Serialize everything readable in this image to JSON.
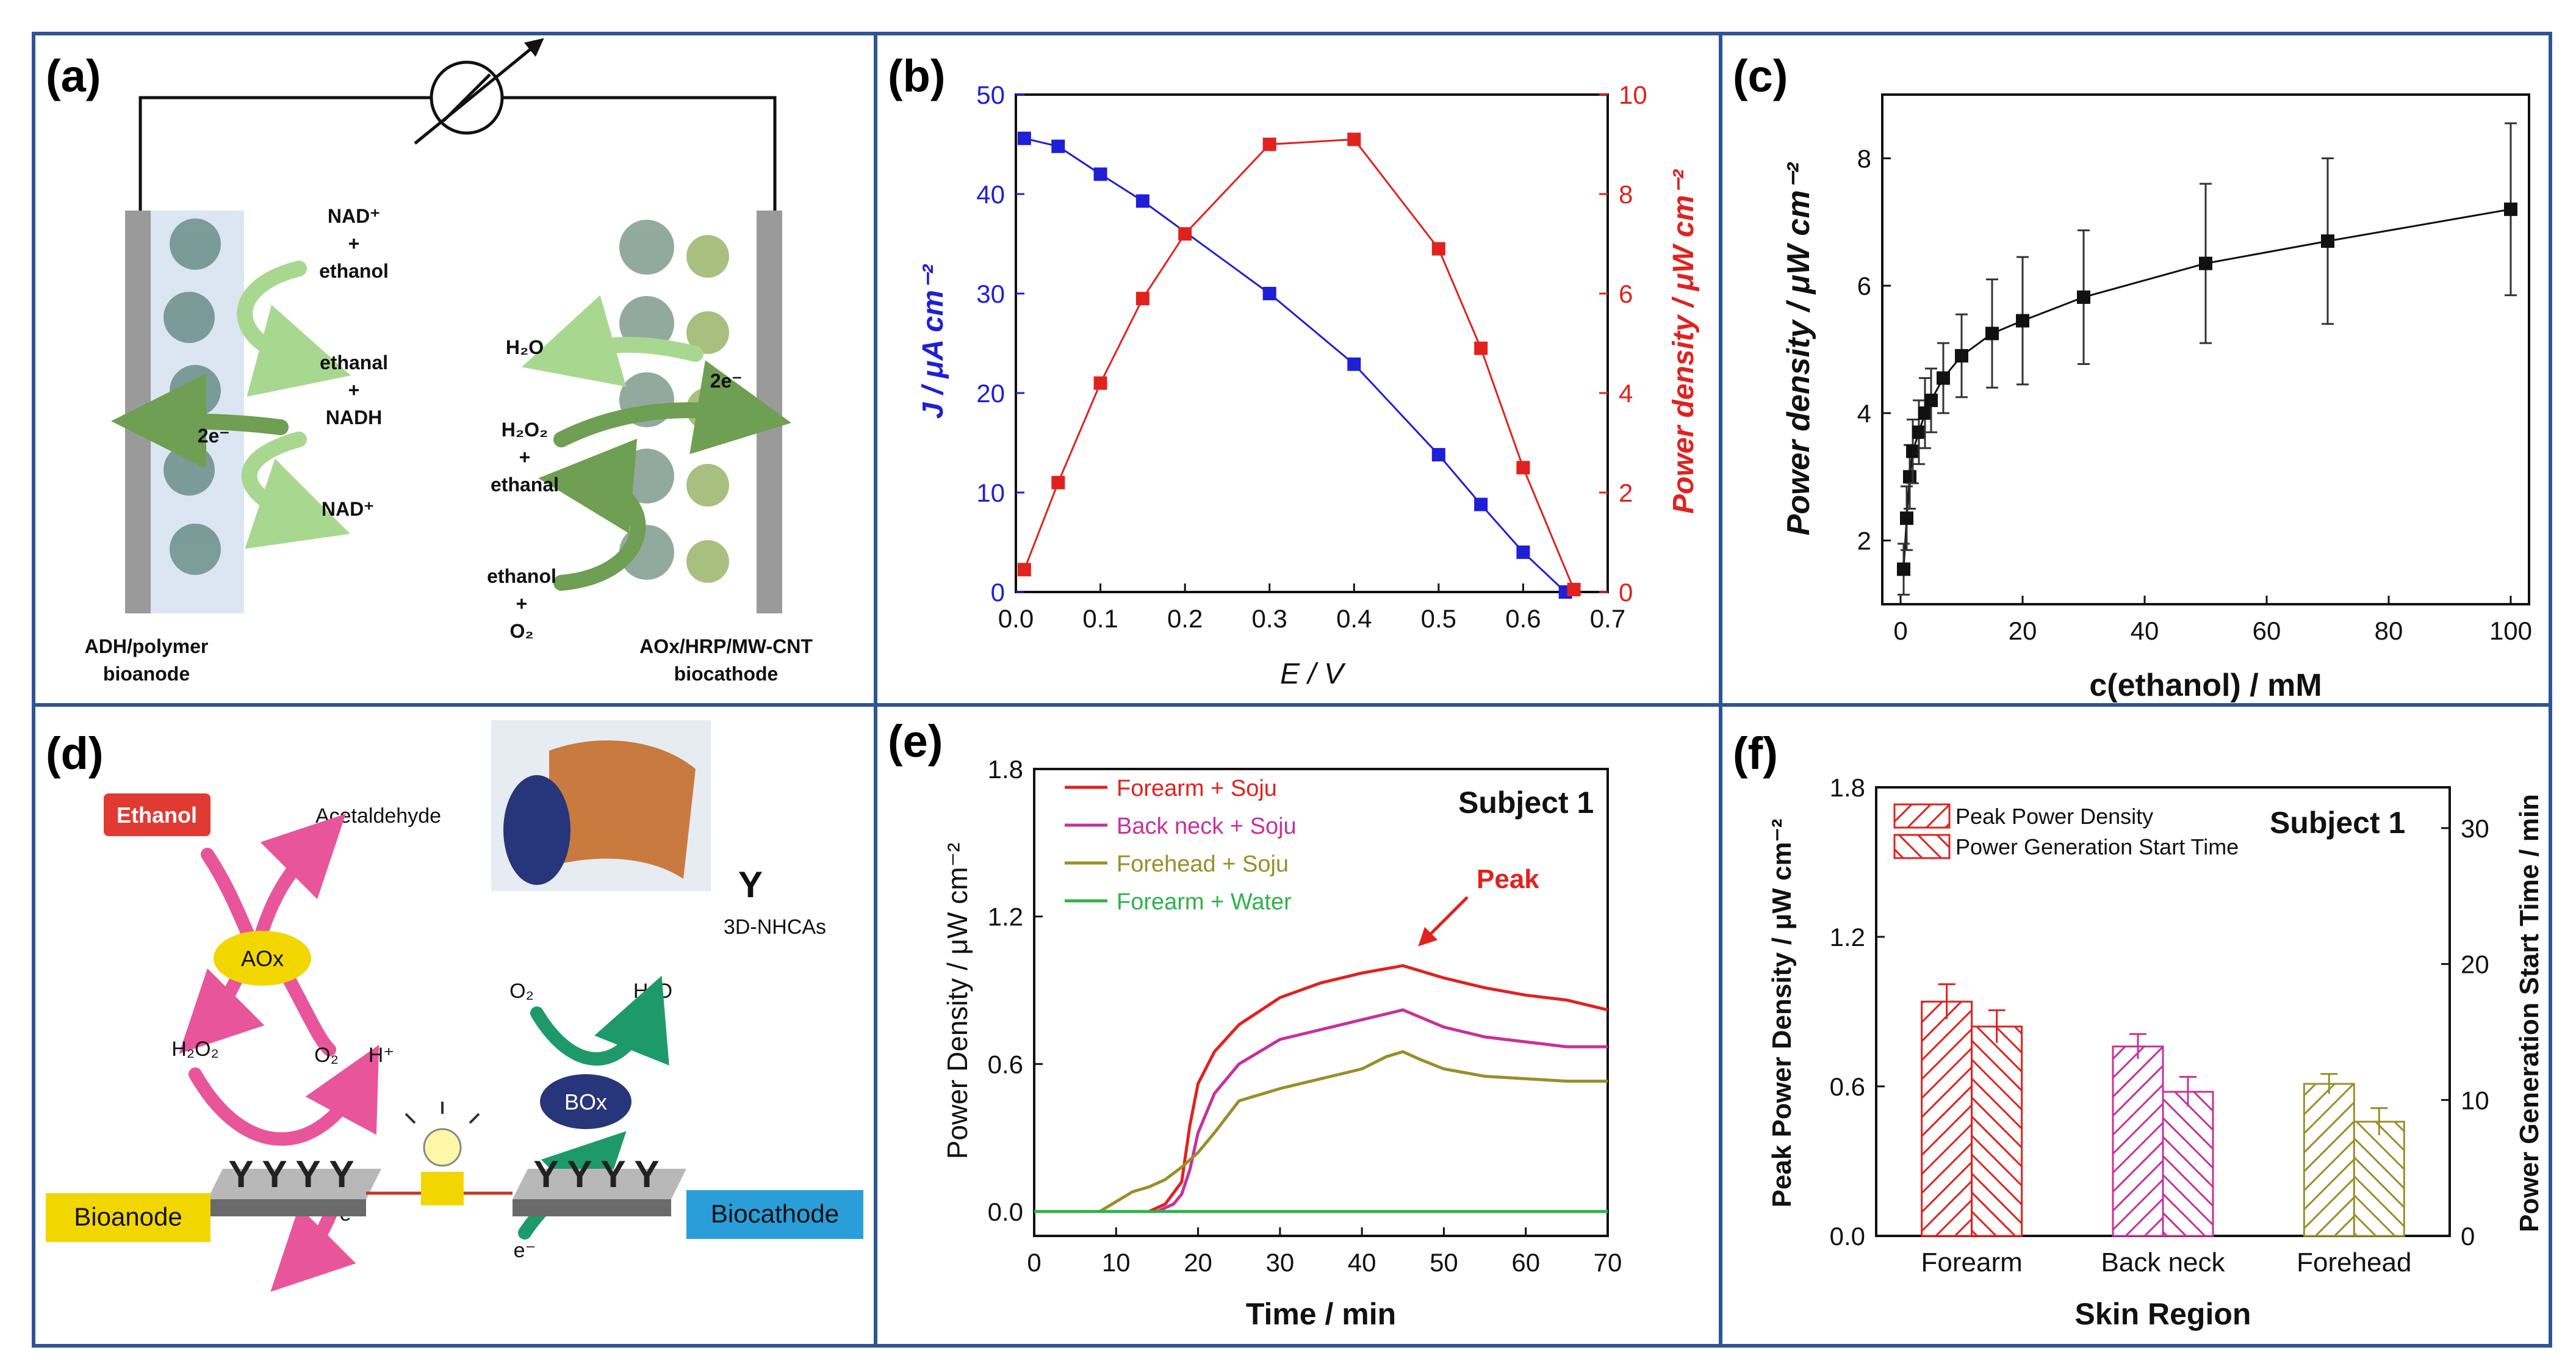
{
  "panel_labels": {
    "a": "(a)",
    "b": "(b)",
    "c": "(c)",
    "d": "(d)",
    "e": "(e)",
    "f": "(f)"
  },
  "colors": {
    "border": "#2f5496",
    "blue": "#1f1fd6",
    "red": "#e0221f",
    "magenta": "#c8309a",
    "olive": "#9a8e2a",
    "green": "#2db34a",
    "black": "#111111",
    "light_green": "#a8d890",
    "dark_green": "#6f9f52",
    "pink": "#e8559a",
    "teal": "#1e9a6a",
    "yellow": "#f2d600",
    "red_box": "#e03a33",
    "blue_box": "#2a9ed8"
  },
  "diagram_a": {
    "left_labels": [
      "NAD⁺",
      "+",
      "ethanol",
      "ethanal",
      "+",
      "NADH",
      "NAD⁺",
      "2e⁻"
    ],
    "right_labels": [
      "H₂O",
      "H₂O₂",
      "+",
      "ethanal",
      "ethanol",
      "+",
      "O₂",
      "2e⁻"
    ],
    "anode_caption": [
      "ADH/polymer",
      "bioanode"
    ],
    "cathode_caption": [
      "AOx/HRP/MW-CNT",
      "biocathode"
    ]
  },
  "diagram_d": {
    "ethanol": "Ethanol",
    "acetaldehyde": "Acetaldehyde",
    "aox": "AOx",
    "h2o2": "H₂O₂",
    "o2_left": "O₂",
    "h_plus": "H⁺",
    "o2_right": "O₂",
    "h2o": "H₂O",
    "box": "BOx",
    "bioanode": "Bioanode",
    "biocathode": "Biocathode",
    "e_left": "e⁻",
    "e_right": "e⁻",
    "nhca": "3D-NHCAs"
  },
  "chart_data": [
    {
      "id": "b",
      "type": "line",
      "xlabel": "E / V",
      "ylabel_left": "J / μA cm⁻²",
      "ylabel_right": "Power density / μW cm⁻²",
      "xlim": [
        0,
        0.7
      ],
      "ylim_left": [
        0,
        50
      ],
      "ylim_right": [
        0,
        10
      ],
      "x_ticks": [
        "0.0",
        "0.1",
        "0.2",
        "0.3",
        "0.4",
        "0.5",
        "0.6",
        "0.7"
      ],
      "y_left_ticks": [
        "0",
        "10",
        "20",
        "30",
        "40",
        "50"
      ],
      "y_right_ticks": [
        "0",
        "2",
        "4",
        "6",
        "8",
        "10"
      ],
      "series": [
        {
          "name": "J",
          "axis": "left",
          "color": "blue",
          "x": [
            0.01,
            0.05,
            0.1,
            0.15,
            0.3,
            0.4,
            0.5,
            0.55,
            0.6,
            0.65
          ],
          "y": [
            45.6,
            44.8,
            42,
            39.3,
            30,
            22.9,
            13.8,
            8.8,
            4,
            0
          ]
        },
        {
          "name": "Power density",
          "axis": "right",
          "color": "red",
          "x": [
            0.01,
            0.05,
            0.1,
            0.15,
            0.2,
            0.3,
            0.4,
            0.5,
            0.55,
            0.6,
            0.66
          ],
          "y": [
            0.45,
            2.2,
            4.2,
            5.9,
            7.2,
            9.0,
            9.1,
            6.9,
            4.9,
            2.5,
            0.05
          ]
        }
      ]
    },
    {
      "id": "c",
      "type": "scatter",
      "xlabel": "c(ethanol) / mM",
      "ylabel": "Power density / μW cm⁻²",
      "xlim": [
        0,
        100
      ],
      "ylim": [
        1,
        9
      ],
      "x_ticks": [
        "0",
        "20",
        "40",
        "60",
        "80",
        "100"
      ],
      "y_ticks": [
        "2",
        "4",
        "6",
        "8"
      ],
      "series": [
        {
          "name": "Power density",
          "x": [
            0.5,
            1,
            1.5,
            2,
            3,
            4,
            5,
            7,
            10,
            15,
            20,
            30,
            50,
            70,
            100
          ],
          "y": [
            1.55,
            2.35,
            3.0,
            3.4,
            3.7,
            4.0,
            4.2,
            4.55,
            4.9,
            5.25,
            5.45,
            5.82,
            6.35,
            6.7,
            7.2
          ],
          "err": [
            0.4,
            0.5,
            0.5,
            0.5,
            0.5,
            0.55,
            0.5,
            0.55,
            0.65,
            0.85,
            1.0,
            1.05,
            1.25,
            1.3,
            1.35
          ]
        }
      ]
    },
    {
      "id": "e",
      "type": "line",
      "xlabel": "Time / min",
      "ylabel": "Power Density / μW cm⁻²",
      "xlim": [
        0,
        70
      ],
      "ylim": [
        0,
        1.8
      ],
      "x_ticks": [
        "0",
        "10",
        "20",
        "30",
        "40",
        "50",
        "60",
        "70"
      ],
      "y_ticks": [
        "0.0",
        "0.6",
        "1.2",
        "1.8"
      ],
      "annotation_subject": "Subject 1",
      "annotation_peak": "Peak",
      "series": [
        {
          "name": "Forearm + Soju",
          "color": "red",
          "x": [
            0,
            14,
            16,
            18,
            19,
            20,
            22,
            25,
            30,
            35,
            40,
            45,
            50,
            55,
            60,
            65,
            70
          ],
          "y": [
            0,
            0,
            0.03,
            0.12,
            0.35,
            0.52,
            0.65,
            0.76,
            0.87,
            0.93,
            0.97,
            1.0,
            0.95,
            0.91,
            0.88,
            0.86,
            0.82
          ]
        },
        {
          "name": "Back neck + Soju",
          "color": "magenta",
          "x": [
            0,
            15,
            17,
            18,
            19,
            20,
            22,
            25,
            30,
            35,
            40,
            45,
            50,
            55,
            60,
            65,
            70
          ],
          "y": [
            0,
            0,
            0.03,
            0.07,
            0.17,
            0.32,
            0.48,
            0.6,
            0.7,
            0.74,
            0.78,
            0.82,
            0.75,
            0.71,
            0.69,
            0.67,
            0.67
          ]
        },
        {
          "name": "Forehead + Soju",
          "color": "olive",
          "x": [
            0,
            8,
            10,
            12,
            14,
            16,
            18,
            20,
            22,
            25,
            30,
            35,
            40,
            43,
            45,
            47,
            50,
            55,
            60,
            65,
            70
          ],
          "y": [
            0,
            0,
            0.04,
            0.08,
            0.1,
            0.13,
            0.18,
            0.24,
            0.32,
            0.45,
            0.5,
            0.54,
            0.58,
            0.63,
            0.65,
            0.62,
            0.58,
            0.55,
            0.54,
            0.53,
            0.53
          ]
        },
        {
          "name": "Forearm + Water",
          "color": "green",
          "x": [
            0,
            70
          ],
          "y": [
            0,
            0
          ]
        }
      ]
    },
    {
      "id": "f",
      "type": "bar",
      "xlabel": "Skin Region",
      "ylabel_left": "Peak Power Density / μW cm⁻²",
      "ylabel_right": "Power Generation Start Time / min",
      "ylim_left": [
        0,
        1.8
      ],
      "ylim_right": [
        0,
        33
      ],
      "y_left_ticks": [
        "0.0",
        "0.6",
        "1.2",
        "1.8"
      ],
      "y_right_ticks": [
        "0",
        "10",
        "20",
        "30"
      ],
      "categories": [
        "Forearm",
        "Back neck",
        "Forehead"
      ],
      "annotation_subject": "Subject 1",
      "series": [
        {
          "name": "Peak Power Density",
          "axis": "left",
          "values": [
            0.94,
            0.76,
            0.61
          ],
          "err": [
            0.07,
            0.05,
            0.04
          ]
        },
        {
          "name": "Power Generation Start Time",
          "axis": "right",
          "values": [
            15.4,
            10.6,
            8.4
          ],
          "err": [
            1.2,
            1.1,
            1.0
          ]
        }
      ],
      "bar_colors": [
        "red",
        "magenta",
        "olive"
      ]
    }
  ]
}
